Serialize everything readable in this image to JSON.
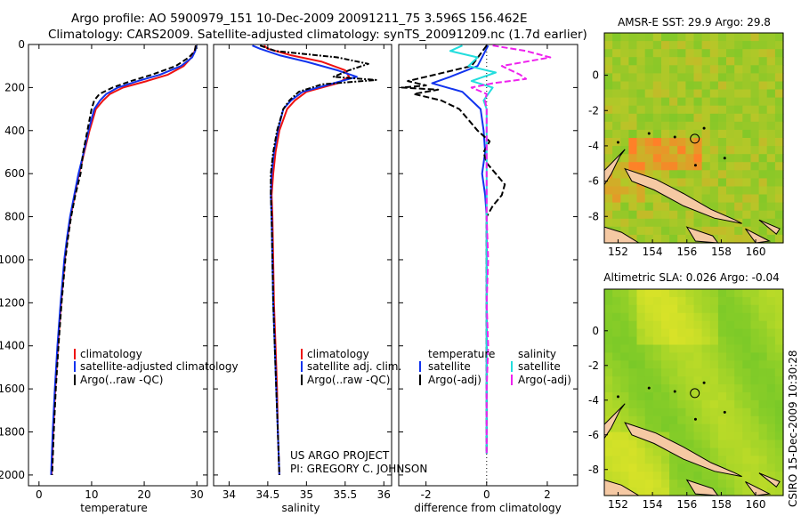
{
  "header": {
    "line1": "Argo profile: AO 5900979_151 10-Dec-2009 20091211_75 3.596S 156.462E",
    "line2": "Climatology: CARS2009. Satellite-adjusted climatology: synTS_20091209.nc (1.7d earlier)"
  },
  "footer": {
    "project": "US ARGO PROJECT",
    "pi": "PI: GREGORY C. JOHNSON",
    "stamp": "CSIRO 15-Dec-2009 10:30:28"
  },
  "colors": {
    "red": "#ee1111",
    "blue": "#1133ee",
    "black": "#000000",
    "cyan": "#22dddd",
    "magenta": "#ee22ee"
  },
  "chart_data": [
    {
      "type": "line",
      "id": "temp",
      "xlabel": "temperature",
      "xlim": [
        -2,
        32
      ],
      "ylim": [
        2050,
        0
      ],
      "xticks": [
        0,
        10,
        20,
        30
      ],
      "yticks": [
        0,
        200,
        400,
        600,
        800,
        1000,
        1200,
        1400,
        1600,
        1800,
        2000
      ],
      "legend": [
        "climatology",
        "satellite-adjusted climatology",
        "Argo(..raw -QC)"
      ],
      "series": [
        {
          "name": "climatology",
          "color": "red",
          "dash": "",
          "depth": [
            5,
            30,
            60,
            100,
            140,
            170,
            200,
            230,
            260,
            300,
            400,
            500,
            600,
            700,
            800,
            900,
            1000,
            1200,
            1400,
            1600,
            1800,
            2000
          ],
          "values": [
            29.8,
            29.6,
            29.0,
            27.5,
            24.5,
            20.5,
            16.0,
            13.5,
            12.2,
            10.8,
            9.6,
            8.6,
            7.6,
            6.8,
            6.0,
            5.4,
            4.9,
            4.2,
            3.6,
            3.1,
            2.7,
            2.4
          ]
        },
        {
          "name": "satellite-adjusted climatology",
          "color": "blue",
          "dash": "",
          "depth": [
            5,
            30,
            60,
            100,
            140,
            170,
            200,
            230,
            260,
            300,
            400,
            500,
            600,
            700,
            800,
            900,
            1000,
            1200,
            1400,
            1600,
            1800,
            2000
          ],
          "values": [
            29.9,
            29.7,
            29.1,
            27.0,
            23.0,
            18.8,
            15.0,
            12.8,
            11.6,
            10.5,
            9.4,
            8.5,
            7.5,
            6.7,
            5.9,
            5.3,
            4.8,
            4.1,
            3.5,
            3.0,
            2.6,
            2.3
          ]
        },
        {
          "name": "Argo(..raw -QC)",
          "color": "black",
          "dash": "6,3",
          "depth": [
            5,
            30,
            60,
            100,
            140,
            170,
            200,
            230,
            260,
            300,
            400,
            500,
            600,
            700,
            800,
            900,
            1000,
            1200,
            1400,
            1600,
            1800,
            2000
          ],
          "values": [
            29.8,
            29.6,
            28.5,
            26.0,
            21.5,
            17.5,
            14.0,
            11.5,
            10.5,
            10.0,
            9.2,
            8.4,
            7.9,
            6.9,
            6.1,
            5.5,
            5.0,
            4.3,
            3.7,
            3.2,
            2.8,
            2.5
          ]
        }
      ]
    },
    {
      "type": "line",
      "id": "sal",
      "xlabel": "salinity",
      "xlim": [
        33.8,
        36.1
      ],
      "ylim": [
        2050,
        0
      ],
      "xticks": [
        34,
        34.5,
        35,
        35.5,
        36
      ],
      "legend": [
        "climatology",
        "satellite adj. clim.",
        "Argo(..raw -QC)"
      ],
      "series": [
        {
          "name": "climatology",
          "color": "red",
          "dash": "",
          "depth": [
            5,
            20,
            50,
            80,
            120,
            150,
            180,
            220,
            260,
            300,
            400,
            500,
            600,
            700,
            800,
            1000,
            1200,
            1400,
            1600,
            1800,
            2000
          ],
          "values": [
            34.45,
            34.5,
            34.8,
            35.2,
            35.5,
            35.55,
            35.4,
            35.0,
            34.85,
            34.75,
            34.65,
            34.6,
            34.57,
            34.55,
            34.56,
            34.57,
            34.58,
            34.6,
            34.62,
            34.63,
            34.65
          ]
        },
        {
          "name": "satellite adj. clim.",
          "color": "blue",
          "dash": "",
          "depth": [
            5,
            20,
            50,
            80,
            120,
            150,
            180,
            220,
            260,
            300,
            400,
            500,
            600,
            700,
            800,
            1000,
            1200,
            1400,
            1600,
            1800,
            2000
          ],
          "values": [
            34.3,
            34.4,
            34.65,
            35.0,
            35.4,
            35.65,
            35.35,
            34.95,
            34.8,
            34.7,
            34.63,
            34.58,
            34.55,
            34.54,
            34.55,
            34.56,
            34.57,
            34.59,
            34.61,
            34.63,
            34.65
          ]
        },
        {
          "name": "Argo(..raw -QC)",
          "color": "black",
          "dash": "6,2,2,2",
          "depth": [
            5,
            30,
            60,
            90,
            120,
            150,
            165,
            185,
            220,
            260,
            300,
            400,
            500,
            600,
            700,
            800,
            1000,
            1200,
            1400,
            1600,
            1800,
            2000
          ],
          "values": [
            34.4,
            34.6,
            35.4,
            35.8,
            35.55,
            35.35,
            35.9,
            35.2,
            34.9,
            34.78,
            34.7,
            34.62,
            34.57,
            34.54,
            34.54,
            34.55,
            34.56,
            34.57,
            34.59,
            34.61,
            34.63,
            34.65
          ]
        }
      ]
    },
    {
      "type": "line",
      "id": "diff",
      "xlabel": "difference from climatology",
      "xlim": [
        -2.9,
        3.0
      ],
      "ylim": [
        2050,
        0
      ],
      "xticks": [
        -2,
        0,
        2
      ],
      "legend_left_title": "temperature",
      "legend_right_title": "salinity",
      "legend": [
        "satellite",
        "Argo(-adj)",
        "satellite",
        "Argo(-adj)"
      ],
      "series": [
        {
          "name": "satellite",
          "group": "temperature",
          "color": "blue",
          "dash": "",
          "depth": [
            5,
            100,
            150,
            180,
            200,
            220,
            260,
            300,
            400,
            500,
            600,
            700,
            800,
            1000,
            1200,
            1400,
            1600,
            1800,
            1900
          ],
          "values": [
            0.05,
            -0.3,
            -1.2,
            -1.8,
            -1.3,
            -0.8,
            -0.5,
            -0.2,
            -0.1,
            -0.05,
            -0.15,
            -0.05,
            0.0,
            0.0,
            0.0,
            0.0,
            0.0,
            0.0,
            0.0
          ]
        },
        {
          "name": "Argo(-adj)",
          "group": "temperature",
          "color": "black",
          "dash": "7,3",
          "depth": [
            5,
            100,
            150,
            170,
            190,
            200,
            210,
            230,
            260,
            300,
            350,
            400,
            450,
            500,
            550,
            600,
            650,
            700,
            750,
            800,
            900,
            1000,
            1200,
            1400,
            1600,
            1800,
            1900
          ],
          "values": [
            0.0,
            -0.5,
            -2.0,
            -2.6,
            -2.0,
            -2.8,
            -1.6,
            -2.4,
            -1.5,
            -0.9,
            -0.6,
            -0.3,
            0.1,
            -0.1,
            0.0,
            0.3,
            0.6,
            0.5,
            0.2,
            0.0,
            0.0,
            0.0,
            0.0,
            0.0,
            0.0,
            0.0,
            0.0
          ]
        },
        {
          "name": "satellite",
          "group": "salinity",
          "color": "cyan",
          "dash": "",
          "depth": [
            5,
            30,
            60,
            100,
            130,
            170,
            200,
            260,
            300,
            400,
            600,
            800,
            1000,
            1200,
            1400,
            1600,
            1800,
            1900
          ],
          "values": [
            -0.8,
            -1.2,
            -0.3,
            -0.6,
            0.3,
            -0.5,
            0.2,
            -0.1,
            0.0,
            0.0,
            0.0,
            0.0,
            0.0,
            0.0,
            0.0,
            0.0,
            0.0,
            0.0
          ]
        },
        {
          "name": "Argo(-adj)",
          "group": "salinity",
          "color": "magenta",
          "dash": "7,3",
          "depth": [
            5,
            30,
            60,
            100,
            140,
            160,
            180,
            200,
            230,
            260,
            300,
            400,
            600,
            800,
            1000,
            1200,
            1400,
            1600,
            1800,
            1900
          ],
          "values": [
            0.2,
            1.3,
            2.1,
            0.5,
            1.1,
            1.3,
            0.2,
            -0.5,
            0.0,
            -0.05,
            0.0,
            0.0,
            0.0,
            0.0,
            0.05,
            0.0,
            0.05,
            0.0,
            0.0,
            0.0
          ]
        }
      ]
    },
    {
      "type": "heatmap",
      "id": "sst",
      "title": "AMSR-E SST: 29.9   Argo: 29.8",
      "xticks": [
        152,
        154,
        156,
        158,
        160
      ],
      "yticks": [
        0,
        -2,
        -4,
        -6,
        -8
      ]
    },
    {
      "type": "heatmap",
      "id": "sla",
      "title": "Altimetric SLA: 0.026   Argo: -0.04",
      "xticks": [
        152,
        154,
        156,
        158,
        160
      ],
      "yticks": [
        0,
        -2,
        -4,
        -6,
        -8
      ]
    }
  ]
}
